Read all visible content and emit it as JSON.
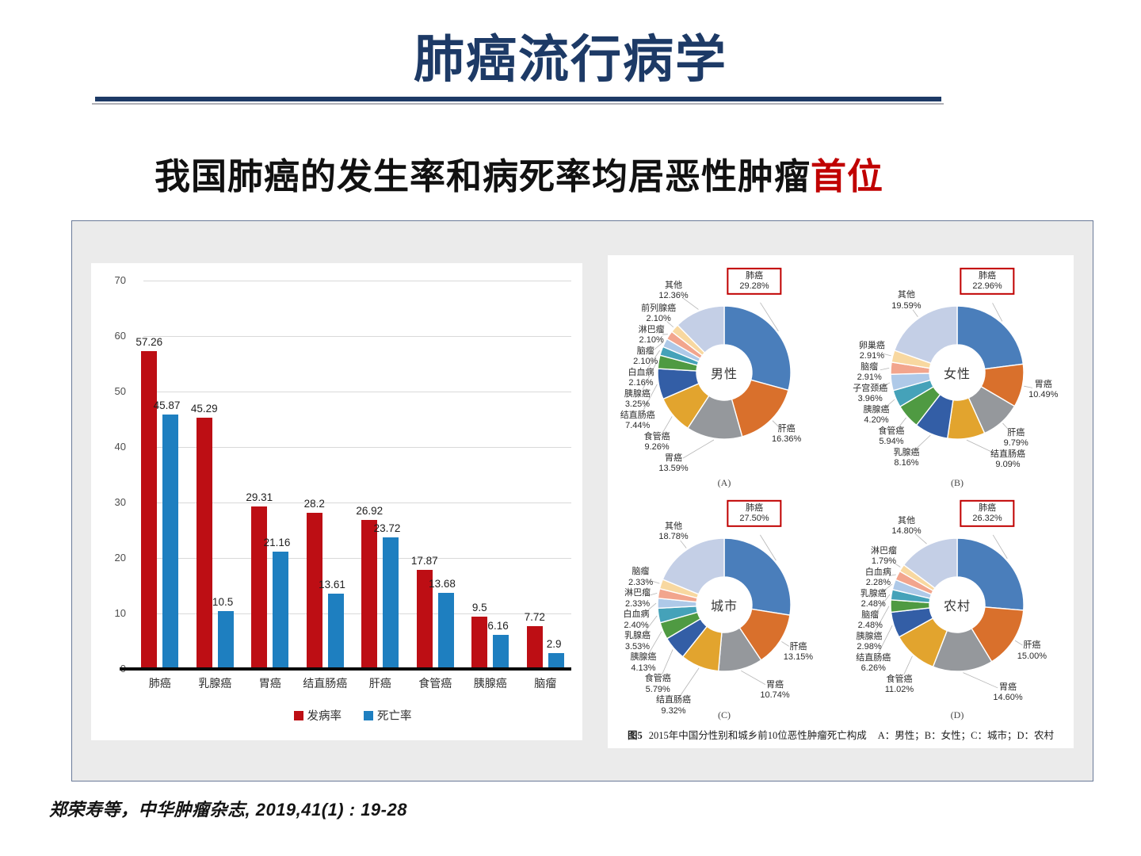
{
  "slide": {
    "title": "肺癌流行病学",
    "subtitle_main": "我国肺癌的发生率和病死率均居恶性肿瘤",
    "subtitle_highlight": "首位",
    "citation": "郑荣寿等，中华肿瘤杂志, 2019,41(1) : 19-28"
  },
  "colors": {
    "title_navy": "#1d3a66",
    "highlight_red": "#c00000",
    "incidence_red": "#bd0e14",
    "mortality_blue": "#1e7fc0",
    "panel_bg": "#ebebeb",
    "panel_border": "#6a7a99",
    "gridline": "#d9d9d9",
    "pie_palette": [
      "#4a7ebb",
      "#d9702c",
      "#95989c",
      "#e2a42e",
      "#335ea6",
      "#4f9a42",
      "#45a2b9",
      "#aec9e8",
      "#f2a58d",
      "#f8d8a0",
      "#c4cfe6"
    ]
  },
  "chart_data": [
    {
      "type": "bar",
      "name": "cancer-incidence-mortality",
      "categories": [
        "肺癌",
        "乳腺癌",
        "胃癌",
        "结直肠癌",
        "肝癌",
        "食管癌",
        "胰腺癌",
        "脑瘤"
      ],
      "series": [
        {
          "name": "发病率",
          "values": [
            57.26,
            45.29,
            29.31,
            28.2,
            26.92,
            17.87,
            9.5,
            7.72
          ]
        },
        {
          "name": "死亡率",
          "values": [
            45.87,
            10.5,
            21.16,
            13.61,
            23.72,
            13.68,
            6.16,
            2.9
          ]
        }
      ],
      "ylim": [
        0,
        70
      ],
      "ytick_step": 10,
      "grid": true,
      "legend_position": "bottom"
    },
    {
      "type": "pie",
      "panel_letter": "(A)",
      "center_label": "男性",
      "slices": [
        {
          "label": "肺癌",
          "pct": "29.28",
          "highlight": true
        },
        {
          "label": "肝癌",
          "pct": "16.36"
        },
        {
          "label": "胃癌",
          "pct": "13.59"
        },
        {
          "label": "食管癌",
          "pct": "9.26"
        },
        {
          "label": "结直肠癌",
          "pct": "7.44"
        },
        {
          "label": "胰腺癌",
          "pct": "3.25"
        },
        {
          "label": "白血病",
          "pct": "2.16"
        },
        {
          "label": "脑瘤",
          "pct": "2.10"
        },
        {
          "label": "淋巴瘤",
          "pct": "2.10"
        },
        {
          "label": "前列腺癌",
          "pct": "2.10"
        },
        {
          "label": "其他",
          "pct": "12.36"
        }
      ]
    },
    {
      "type": "pie",
      "panel_letter": "(B)",
      "center_label": "女性",
      "slices": [
        {
          "label": "肺癌",
          "pct": "22.96",
          "highlight": true
        },
        {
          "label": "胃癌",
          "pct": "10.49"
        },
        {
          "label": "肝癌",
          "pct": "9.79"
        },
        {
          "label": "结直肠癌",
          "pct": "9.09"
        },
        {
          "label": "乳腺癌",
          "pct": "8.16"
        },
        {
          "label": "食管癌",
          "pct": "5.94"
        },
        {
          "label": "胰腺癌",
          "pct": "4.20"
        },
        {
          "label": "子宫颈癌",
          "pct": "3.96"
        },
        {
          "label": "脑瘤",
          "pct": "2.91"
        },
        {
          "label": "卵巢癌",
          "pct": "2.91"
        },
        {
          "label": "其他",
          "pct": "19.59"
        }
      ]
    },
    {
      "type": "pie",
      "panel_letter": "(C)",
      "center_label": "城市",
      "slices": [
        {
          "label": "肺癌",
          "pct": "27.50",
          "highlight": true
        },
        {
          "label": "肝癌",
          "pct": "13.15"
        },
        {
          "label": "胃癌",
          "pct": "10.74"
        },
        {
          "label": "结直肠癌",
          "pct": "9.32"
        },
        {
          "label": "食管癌",
          "pct": "5.79"
        },
        {
          "label": "胰腺癌",
          "pct": "4.13"
        },
        {
          "label": "乳腺癌",
          "pct": "3.53"
        },
        {
          "label": "白血病",
          "pct": "2.40"
        },
        {
          "label": "淋巴瘤",
          "pct": "2.33"
        },
        {
          "label": "脑瘤",
          "pct": "2.33"
        },
        {
          "label": "其他",
          "pct": "18.78"
        }
      ]
    },
    {
      "type": "pie",
      "panel_letter": "(D)",
      "center_label": "农村",
      "slices": [
        {
          "label": "肺癌",
          "pct": "26.32",
          "highlight": true
        },
        {
          "label": "肝癌",
          "pct": "15.00"
        },
        {
          "label": "胃癌",
          "pct": "14.60"
        },
        {
          "label": "食管癌",
          "pct": "11.02"
        },
        {
          "label": "结直肠癌",
          "pct": "6.26"
        },
        {
          "label": "胰腺癌",
          "pct": "2.98"
        },
        {
          "label": "脑瘤",
          "pct": "2.48"
        },
        {
          "label": "乳腺癌",
          "pct": "2.48"
        },
        {
          "label": "白血病",
          "pct": "2.28"
        },
        {
          "label": "淋巴瘤",
          "pct": "1.79"
        },
        {
          "label": "其他",
          "pct": "14.80"
        }
      ]
    }
  ],
  "pie_panel": {
    "caption_label": "图5",
    "caption_text": "2015年中国分性别和城乡前10位恶性肿瘤死亡构成",
    "caption_legend": "A：男性；B：女性；C：城市；D：农村"
  }
}
